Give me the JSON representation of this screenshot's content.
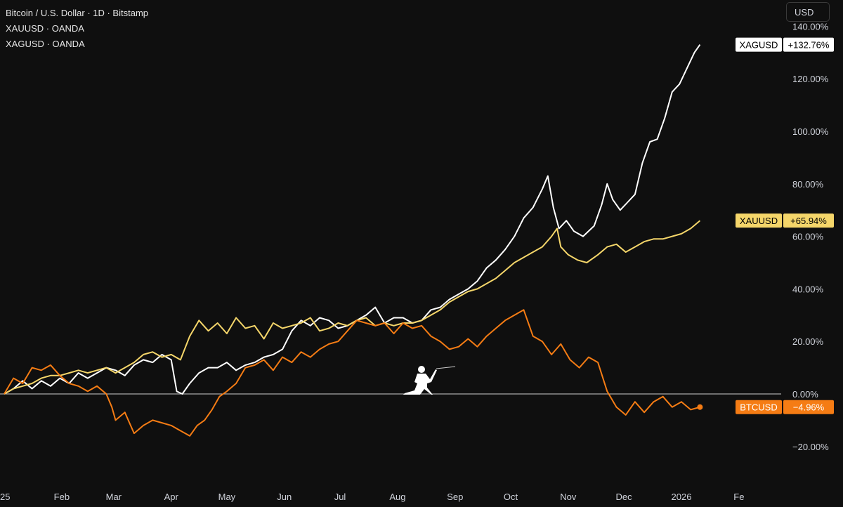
{
  "legend": [
    "Bitcoin / U.S. Dollar · 1D · Bitstamp",
    "XAUUSD · OANDA",
    "XAGUSD · OANDA"
  ],
  "currency_button": "USD",
  "colors": {
    "btc": "#f57c14",
    "xau": "#f5d66a",
    "xag": "#ffffff",
    "background": "#0f0f0f",
    "zero_line": "#cfcfcf"
  },
  "icons": {
    "watermark": "fencer-icon"
  },
  "chart_data": {
    "type": "line",
    "y_unit": "percent change",
    "ylim": [
      -25,
      140
    ],
    "yticks": [
      -20,
      0,
      20,
      40,
      60,
      80,
      100,
      120,
      140
    ],
    "ytick_labels": [
      "−20.00%",
      "0.00%",
      "20.00%",
      "40.00%",
      "60.00%",
      "80.00%",
      "100.00%",
      "120.00%",
      "140.00%"
    ],
    "x_labels": [
      "25",
      "Feb",
      "Mar",
      "Apr",
      "May",
      "Jun",
      "Jul",
      "Aug",
      "Sep",
      "Oct",
      "Nov",
      "Dec",
      "2026",
      "Fe"
    ],
    "x_label_days": [
      0,
      31,
      59,
      90,
      120,
      151,
      181,
      212,
      243,
      273,
      304,
      334,
      365,
      396
    ],
    "xlim_days": [
      -1,
      400
    ],
    "series": [
      {
        "name": "XAGUSD",
        "color_key": "xag",
        "last_label": "+132.76%",
        "points": [
          [
            0,
            0
          ],
          [
            5,
            2
          ],
          [
            10,
            5
          ],
          [
            15,
            2
          ],
          [
            20,
            5
          ],
          [
            25,
            3
          ],
          [
            30,
            6
          ],
          [
            35,
            4
          ],
          [
            40,
            8
          ],
          [
            45,
            6
          ],
          [
            50,
            8
          ],
          [
            55,
            10
          ],
          [
            60,
            9
          ],
          [
            65,
            7
          ],
          [
            70,
            11
          ],
          [
            75,
            13
          ],
          [
            80,
            12
          ],
          [
            85,
            15
          ],
          [
            90,
            13
          ],
          [
            93,
            1
          ],
          [
            96,
            0
          ],
          [
            100,
            4
          ],
          [
            105,
            8
          ],
          [
            110,
            10
          ],
          [
            115,
            10
          ],
          [
            120,
            12
          ],
          [
            125,
            9
          ],
          [
            130,
            11
          ],
          [
            135,
            12
          ],
          [
            140,
            14
          ],
          [
            145,
            15
          ],
          [
            150,
            17
          ],
          [
            155,
            24
          ],
          [
            160,
            28
          ],
          [
            165,
            26
          ],
          [
            170,
            29
          ],
          [
            175,
            28
          ],
          [
            180,
            25
          ],
          [
            185,
            26
          ],
          [
            190,
            28
          ],
          [
            195,
            30
          ],
          [
            200,
            33
          ],
          [
            205,
            27
          ],
          [
            210,
            29
          ],
          [
            215,
            29
          ],
          [
            220,
            27
          ],
          [
            225,
            28
          ],
          [
            230,
            32
          ],
          [
            235,
            33
          ],
          [
            240,
            36
          ],
          [
            245,
            38
          ],
          [
            250,
            40
          ],
          [
            255,
            43
          ],
          [
            260,
            48
          ],
          [
            265,
            51
          ],
          [
            270,
            55
          ],
          [
            275,
            60
          ],
          [
            280,
            67
          ],
          [
            285,
            71
          ],
          [
            290,
            78
          ],
          [
            293,
            83
          ],
          [
            296,
            71
          ],
          [
            299,
            63
          ],
          [
            303,
            66
          ],
          [
            307,
            62
          ],
          [
            312,
            60
          ],
          [
            318,
            64
          ],
          [
            322,
            72
          ],
          [
            325,
            80
          ],
          [
            328,
            74
          ],
          [
            332,
            70
          ],
          [
            336,
            73
          ],
          [
            340,
            76
          ],
          [
            344,
            88
          ],
          [
            348,
            96
          ],
          [
            352,
            97
          ],
          [
            356,
            105
          ],
          [
            360,
            115
          ],
          [
            364,
            118
          ],
          [
            368,
            124
          ],
          [
            372,
            130
          ],
          [
            375,
            133
          ]
        ]
      },
      {
        "name": "XAUUSD",
        "color_key": "xau",
        "last_label": "+65.94%",
        "points": [
          [
            0,
            0
          ],
          [
            5,
            2
          ],
          [
            10,
            3
          ],
          [
            15,
            4
          ],
          [
            20,
            6
          ],
          [
            25,
            7
          ],
          [
            30,
            7
          ],
          [
            35,
            8
          ],
          [
            40,
            9
          ],
          [
            45,
            8
          ],
          [
            50,
            9
          ],
          [
            55,
            10
          ],
          [
            60,
            8
          ],
          [
            65,
            10
          ],
          [
            70,
            12
          ],
          [
            75,
            15
          ],
          [
            80,
            16
          ],
          [
            85,
            14
          ],
          [
            90,
            15
          ],
          [
            95,
            13
          ],
          [
            100,
            22
          ],
          [
            105,
            28
          ],
          [
            110,
            24
          ],
          [
            115,
            27
          ],
          [
            120,
            23
          ],
          [
            125,
            29
          ],
          [
            130,
            25
          ],
          [
            135,
            26
          ],
          [
            140,
            21
          ],
          [
            145,
            27
          ],
          [
            150,
            25
          ],
          [
            155,
            26
          ],
          [
            160,
            27
          ],
          [
            165,
            29
          ],
          [
            170,
            24
          ],
          [
            175,
            25
          ],
          [
            180,
            27
          ],
          [
            185,
            26
          ],
          [
            190,
            28
          ],
          [
            195,
            29
          ],
          [
            200,
            26
          ],
          [
            205,
            27
          ],
          [
            210,
            26
          ],
          [
            215,
            27
          ],
          [
            220,
            27
          ],
          [
            225,
            28
          ],
          [
            230,
            30
          ],
          [
            235,
            32
          ],
          [
            240,
            35
          ],
          [
            245,
            37
          ],
          [
            250,
            39
          ],
          [
            255,
            40
          ],
          [
            260,
            42
          ],
          [
            265,
            44
          ],
          [
            270,
            47
          ],
          [
            275,
            50
          ],
          [
            280,
            52
          ],
          [
            285,
            54
          ],
          [
            290,
            56
          ],
          [
            295,
            60
          ],
          [
            298,
            63
          ],
          [
            300,
            56
          ],
          [
            304,
            53
          ],
          [
            309,
            51
          ],
          [
            314,
            50
          ],
          [
            320,
            53
          ],
          [
            325,
            56
          ],
          [
            330,
            57
          ],
          [
            335,
            54
          ],
          [
            340,
            56
          ],
          [
            345,
            58
          ],
          [
            350,
            59
          ],
          [
            355,
            59
          ],
          [
            360,
            60
          ],
          [
            365,
            61
          ],
          [
            370,
            63
          ],
          [
            375,
            66
          ]
        ]
      },
      {
        "name": "BTCUSD",
        "color_key": "btc",
        "last_label": "−4.96%",
        "points": [
          [
            0,
            0
          ],
          [
            5,
            6
          ],
          [
            10,
            4
          ],
          [
            15,
            10
          ],
          [
            20,
            9
          ],
          [
            25,
            11
          ],
          [
            30,
            7
          ],
          [
            35,
            4
          ],
          [
            40,
            3
          ],
          [
            45,
            1
          ],
          [
            50,
            3
          ],
          [
            55,
            0
          ],
          [
            58,
            -5
          ],
          [
            60,
            -10
          ],
          [
            65,
            -7
          ],
          [
            70,
            -15
          ],
          [
            75,
            -12
          ],
          [
            80,
            -10
          ],
          [
            85,
            -11
          ],
          [
            90,
            -12
          ],
          [
            95,
            -14
          ],
          [
            100,
            -16
          ],
          [
            104,
            -12
          ],
          [
            108,
            -10
          ],
          [
            112,
            -6
          ],
          [
            116,
            -1
          ],
          [
            120,
            1
          ],
          [
            125,
            4
          ],
          [
            130,
            10
          ],
          [
            135,
            11
          ],
          [
            140,
            13
          ],
          [
            145,
            9
          ],
          [
            150,
            14
          ],
          [
            155,
            12
          ],
          [
            160,
            16
          ],
          [
            165,
            14
          ],
          [
            170,
            17
          ],
          [
            175,
            19
          ],
          [
            180,
            20
          ],
          [
            185,
            24
          ],
          [
            190,
            28
          ],
          [
            195,
            27
          ],
          [
            200,
            26
          ],
          [
            205,
            27
          ],
          [
            210,
            23
          ],
          [
            215,
            27
          ],
          [
            220,
            25
          ],
          [
            225,
            26
          ],
          [
            230,
            22
          ],
          [
            235,
            20
          ],
          [
            240,
            17
          ],
          [
            245,
            18
          ],
          [
            250,
            21
          ],
          [
            255,
            18
          ],
          [
            260,
            22
          ],
          [
            265,
            25
          ],
          [
            270,
            28
          ],
          [
            275,
            30
          ],
          [
            280,
            32
          ],
          [
            285,
            22
          ],
          [
            290,
            20
          ],
          [
            295,
            15
          ],
          [
            300,
            19
          ],
          [
            305,
            13
          ],
          [
            310,
            10
          ],
          [
            315,
            14
          ],
          [
            320,
            12
          ],
          [
            325,
            1
          ],
          [
            330,
            -5
          ],
          [
            335,
            -8
          ],
          [
            340,
            -3
          ],
          [
            345,
            -7
          ],
          [
            350,
            -3
          ],
          [
            355,
            -1
          ],
          [
            360,
            -5
          ],
          [
            365,
            -3
          ],
          [
            370,
            -6
          ],
          [
            375,
            -5
          ]
        ]
      }
    ]
  }
}
